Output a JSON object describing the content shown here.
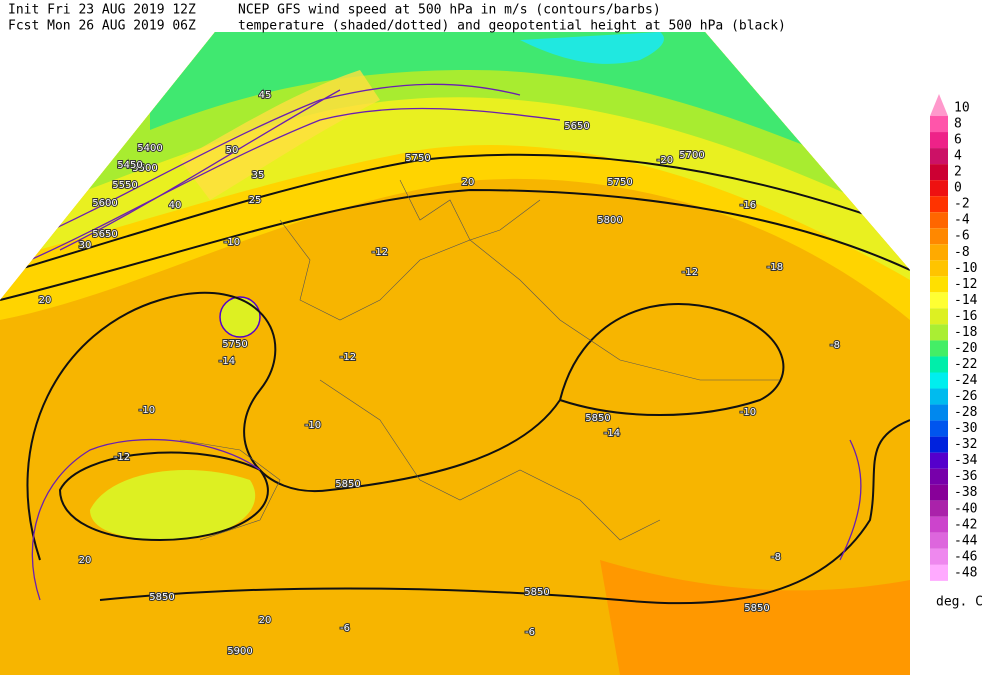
{
  "header": {
    "init": "Init  Fri 23 AUG 2019 12Z",
    "fcst": "Fcst Mon 26 AUG 2019 06Z",
    "title1": "NCEP GFS wind speed at 500 hPa in m/s (contours/barbs)",
    "title2": "temperature (shaded/dotted) and geopotential height at 500 hPa (black)"
  },
  "colorbar": {
    "levels": [
      10,
      8,
      6,
      4,
      2,
      0,
      -2,
      -4,
      -6,
      -8,
      -10,
      -12,
      -14,
      -16,
      -18,
      -20,
      -22,
      -24,
      -26,
      -28,
      -30,
      -32,
      -34,
      -36,
      -38,
      -40,
      -42,
      -44,
      -46,
      -48
    ],
    "colors": [
      "#ff99cc",
      "#ff55aa",
      "#ee2288",
      "#cc1166",
      "#cc0033",
      "#ee1111",
      "#ff3300",
      "#ff6600",
      "#ff8800",
      "#ffaa00",
      "#ffc400",
      "#ffe000",
      "#ffff33",
      "#ddf022",
      "#aaee33",
      "#44ee66",
      "#00eeaa",
      "#00eeee",
      "#00bbee",
      "#0088ee",
      "#0055ee",
      "#0022dd",
      "#5500cc",
      "#7700aa",
      "#880099",
      "#aa22aa",
      "#cc44cc",
      "#dd66dd",
      "#ee88ee",
      "#ffaaff"
    ],
    "unit": "deg. C"
  },
  "map_labels": [
    "5750",
    "5750",
    "5800",
    "5850",
    "5850",
    "5850",
    "5850",
    "5850",
    "5900",
    "5700",
    "5750",
    "5650",
    "5600",
    "5550",
    "5500",
    "5450",
    "5400",
    "5650",
    "25",
    "30",
    "35",
    "40",
    "45",
    "50",
    "20",
    "20",
    "20",
    "20",
    "-10",
    "-12",
    "-12",
    "-14",
    "-14",
    "-10",
    "-12",
    "-10",
    "-8",
    "-8",
    "-10",
    "-6",
    "-6",
    "-12",
    "-16",
    "-18",
    "-20"
  ]
}
